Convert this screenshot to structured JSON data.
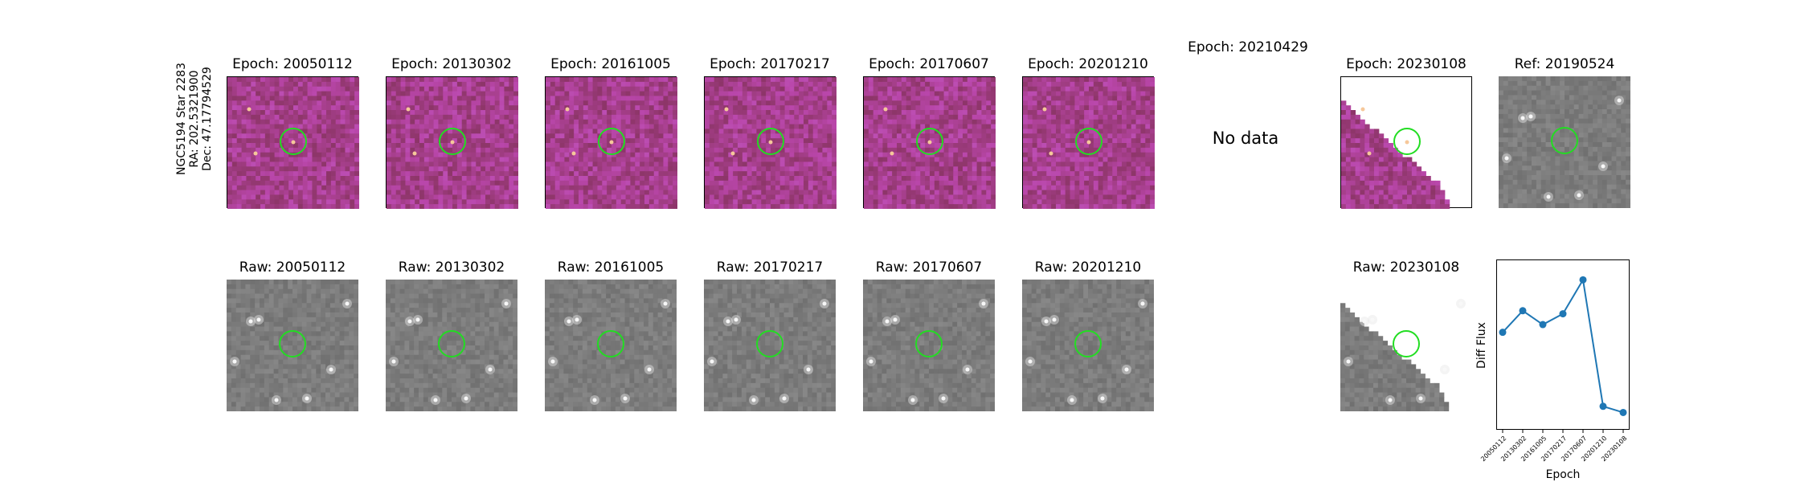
{
  "star": {
    "name": "NGC5194 Star 2283",
    "ra": "RA: 202.5321900",
    "dec": "Dec: 47.17794529"
  },
  "diff_titles": [
    "Epoch: 20050112",
    "Epoch: 20130302",
    "Epoch: 20161005",
    "Epoch: 20170217",
    "Epoch: 20170607",
    "Epoch: 20201210",
    "Epoch: 20210429",
    "Epoch: 20230108",
    "Ref: 20190524"
  ],
  "raw_titles": [
    "Raw: 20050112",
    "Raw: 20130302",
    "Raw: 20161005",
    "Raw: 20170217",
    "Raw: 20170607",
    "Raw: 20201210",
    "Raw: 20230108"
  ],
  "no_data_text": "No data",
  "colors": {
    "marker": "#22dd22",
    "series": "#1f77b4",
    "diff_bg": "#a63a7a",
    "raw_bg": "#7a7a7a"
  },
  "chart_data": {
    "type": "line",
    "xlabel": "Epoch",
    "ylabel": "Diff Flux",
    "categories": [
      "20050112",
      "20130302",
      "20161005",
      "20170217",
      "20170607",
      "20201210",
      "20230108"
    ],
    "series": [
      {
        "values": [
          0.58,
          0.72,
          0.63,
          0.7,
          0.92,
          0.1,
          0.06
        ]
      }
    ],
    "ylim": [
      0,
      1
    ],
    "grid": false
  }
}
